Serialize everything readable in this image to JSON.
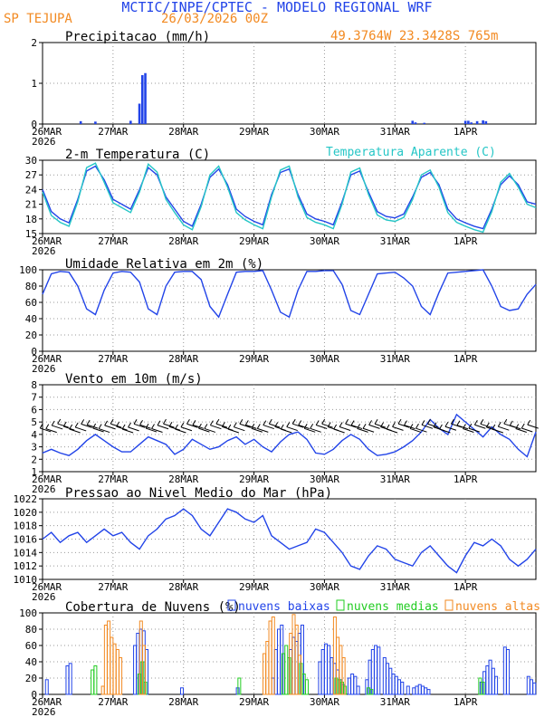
{
  "header": {
    "title": "MCTIC/INPE/CPTEC - MODELO REGIONAL WRF",
    "station": "SP TEJUPA",
    "run": "26/03/2026 00Z",
    "location": "49.3764W 23.3428S 765m"
  },
  "colors": {
    "blue": "#2244e8",
    "cyan": "#25c6c6",
    "orange": "#f28a22",
    "green": "#22cc22",
    "black": "#000000",
    "grid": "#999999"
  },
  "x_axis": {
    "labels": [
      "26MAR",
      "27MAR",
      "28MAR",
      "29MAR",
      "30MAR",
      "31MAR",
      "1APR"
    ],
    "year": "2026",
    "hours_total": 168
  },
  "chart_data": [
    {
      "type": "bar",
      "title": "Precipitacao (mm/h)",
      "ylim": [
        0,
        2
      ],
      "yticks": [
        "0",
        "1",
        "2"
      ],
      "series": [
        {
          "name": "Precipitacao",
          "color": "#2244e8",
          "x": [
            13,
            18,
            30,
            33,
            34,
            35,
            126,
            127,
            130,
            144,
            145,
            146,
            148,
            150,
            151
          ],
          "values": [
            0.07,
            0.06,
            0.08,
            0.5,
            1.2,
            1.25,
            0.08,
            0.04,
            0.03,
            0.08,
            0.08,
            0.04,
            0.07,
            0.09,
            0.07
          ]
        }
      ]
    },
    {
      "type": "line",
      "title": "2-m Temperatura (C)",
      "legend": "Temperatura Aparente (C)",
      "ylim": [
        15,
        30
      ],
      "yticks": [
        "15",
        "18",
        "21",
        "24",
        "27",
        "30"
      ],
      "series": [
        {
          "name": "2-m Temperatura",
          "color": "#2244e8",
          "x": [
            0,
            3,
            6,
            9,
            12,
            15,
            18,
            21,
            24,
            27,
            30,
            33,
            36,
            39,
            42,
            45,
            48,
            51,
            54,
            57,
            60,
            63,
            66,
            69,
            72,
            75,
            78,
            81,
            84,
            87,
            90,
            93,
            96,
            99,
            102,
            105,
            108,
            111,
            114,
            117,
            120,
            123,
            126,
            129,
            132,
            135,
            138,
            141,
            144,
            147,
            150,
            153,
            156,
            159,
            162,
            165,
            168
          ],
          "values": [
            24,
            19.5,
            18,
            17.2,
            22,
            27.8,
            28.8,
            26,
            22,
            21,
            20,
            24,
            28.5,
            27,
            22.5,
            20,
            17.5,
            16.5,
            21,
            26.5,
            28.2,
            25,
            20,
            18.5,
            17.5,
            16.8,
            23,
            27.5,
            28.2,
            23,
            19,
            18,
            17.5,
            16.8,
            21.5,
            27,
            27.8,
            23.5,
            19.5,
            18.5,
            18.2,
            19,
            22.5,
            26.5,
            27.5,
            25,
            20,
            18,
            17.2,
            16.5,
            16,
            20,
            25,
            26.8,
            25,
            21.5,
            21
          ]
        },
        {
          "name": "Temperatura Aparente",
          "color": "#25c6c6",
          "x": [
            0,
            3,
            6,
            9,
            12,
            15,
            18,
            21,
            24,
            27,
            30,
            33,
            36,
            39,
            42,
            45,
            48,
            51,
            54,
            57,
            60,
            63,
            66,
            69,
            72,
            75,
            78,
            81,
            84,
            87,
            90,
            93,
            96,
            99,
            102,
            105,
            108,
            111,
            114,
            117,
            120,
            123,
            126,
            129,
            132,
            135,
            138,
            141,
            144,
            147,
            150,
            153,
            156,
            159,
            162,
            165,
            168
          ],
          "values": [
            23.5,
            18.7,
            17.3,
            16.5,
            21.5,
            28.5,
            29.4,
            25.5,
            21.3,
            20.3,
            19.3,
            23.5,
            29.2,
            27.6,
            22,
            19.3,
            16.8,
            15.8,
            20.5,
            27,
            28.8,
            24.5,
            19.3,
            17.8,
            16.8,
            16,
            22.5,
            28,
            28.8,
            22.5,
            18.3,
            17.3,
            16.8,
            16,
            21,
            27.6,
            28.4,
            23,
            18.8,
            17.8,
            17.5,
            18.3,
            22,
            27,
            28,
            24.5,
            19.3,
            17.3,
            16.5,
            15.8,
            15.3,
            19.5,
            25.5,
            27.3,
            24.5,
            21,
            20.3
          ]
        }
      ]
    },
    {
      "type": "line",
      "title": "Umidade Relativa em 2m (%)",
      "ylim": [
        0,
        100
      ],
      "yticks": [
        "0",
        "20",
        "40",
        "60",
        "80",
        "100"
      ],
      "series": [
        {
          "name": "Umidade Relativa",
          "color": "#2244e8",
          "x": [
            0,
            3,
            6,
            9,
            12,
            15,
            18,
            21,
            24,
            27,
            30,
            33,
            36,
            39,
            42,
            45,
            48,
            51,
            54,
            57,
            60,
            63,
            66,
            69,
            72,
            75,
            78,
            81,
            84,
            87,
            90,
            93,
            96,
            99,
            102,
            105,
            108,
            111,
            114,
            117,
            120,
            123,
            126,
            129,
            132,
            135,
            138,
            141,
            144,
            147,
            150,
            153,
            156,
            159,
            162,
            165,
            168
          ],
          "values": [
            70,
            95,
            98,
            97,
            80,
            52,
            45,
            75,
            96,
            98,
            97,
            85,
            52,
            45,
            80,
            97,
            98,
            98,
            88,
            55,
            42,
            70,
            97,
            98,
            98,
            99,
            75,
            48,
            42,
            75,
            98,
            98,
            99,
            99,
            82,
            50,
            45,
            70,
            95,
            96,
            97,
            90,
            80,
            55,
            45,
            72,
            96,
            97,
            98,
            99,
            100,
            80,
            55,
            50,
            52,
            70,
            82
          ]
        }
      ]
    },
    {
      "type": "line",
      "title": "Vento em 10m (m/s)",
      "ylim": [
        1,
        8
      ],
      "yticks": [
        "1",
        "2",
        "3",
        "4",
        "5",
        "6",
        "7",
        "8"
      ],
      "series": [
        {
          "name": "Vento em 10m",
          "color": "#2244e8",
          "x": [
            0,
            3,
            6,
            9,
            12,
            15,
            18,
            21,
            24,
            27,
            30,
            33,
            36,
            39,
            42,
            45,
            48,
            51,
            54,
            57,
            60,
            63,
            66,
            69,
            72,
            75,
            78,
            81,
            84,
            87,
            90,
            93,
            96,
            99,
            102,
            105,
            108,
            111,
            114,
            117,
            120,
            123,
            126,
            129,
            132,
            135,
            138,
            141,
            144,
            147,
            150,
            153,
            156,
            159,
            162,
            165,
            168
          ],
          "values": [
            2.5,
            2.8,
            2.5,
            2.3,
            2.8,
            3.5,
            4,
            3.5,
            3,
            2.6,
            2.6,
            3.2,
            3.8,
            3.5,
            3.2,
            2.4,
            2.8,
            3.6,
            3.2,
            2.8,
            3,
            3.5,
            3.8,
            3.2,
            3.6,
            3,
            2.6,
            3.4,
            4,
            4.2,
            3.6,
            2.5,
            2.4,
            2.8,
            3.5,
            4,
            3.6,
            2.8,
            2.3,
            2.4,
            2.6,
            3,
            3.5,
            4.2,
            5.2,
            4.5,
            4,
            5.6,
            5,
            4.4,
            3.8,
            4.6,
            4,
            3.6,
            2.8,
            2.2,
            4.2
          ]
        }
      ],
      "barbs": true
    },
    {
      "type": "line",
      "title": "Pressao ao Nivel Medio do Mar (hPa)",
      "ylim": [
        1010,
        1022
      ],
      "yticks": [
        "1010",
        "1012",
        "1014",
        "1016",
        "1018",
        "1020",
        "1022"
      ],
      "series": [
        {
          "name": "Pressao",
          "color": "#2244e8",
          "x": [
            0,
            3,
            6,
            9,
            12,
            15,
            18,
            21,
            24,
            27,
            30,
            33,
            36,
            39,
            42,
            45,
            48,
            51,
            54,
            57,
            60,
            63,
            66,
            69,
            72,
            75,
            78,
            81,
            84,
            87,
            90,
            93,
            96,
            99,
            102,
            105,
            108,
            111,
            114,
            117,
            120,
            123,
            126,
            129,
            132,
            135,
            138,
            141,
            144,
            147,
            150,
            153,
            156,
            159,
            162,
            165,
            168
          ],
          "values": [
            1016,
            1017,
            1015.5,
            1016.5,
            1017,
            1015.5,
            1016.5,
            1017.5,
            1016.5,
            1017,
            1015.5,
            1014.5,
            1016.5,
            1017.5,
            1019,
            1019.5,
            1020.5,
            1019.5,
            1017.5,
            1016.5,
            1018.5,
            1020.5,
            1020,
            1019,
            1018.5,
            1019.5,
            1016.5,
            1015.5,
            1014.5,
            1015,
            1015.5,
            1017.5,
            1017,
            1015.5,
            1014,
            1012,
            1011.5,
            1013.5,
            1015,
            1014.5,
            1013,
            1012.5,
            1012,
            1014,
            1015,
            1013.5,
            1012,
            1011,
            1013.5,
            1015.5,
            1015,
            1016,
            1015,
            1013,
            1012,
            1013,
            1014.5
          ]
        }
      ]
    },
    {
      "type": "bar",
      "title": "Cobertura de Nuvens (%)",
      "ylim": [
        0,
        100
      ],
      "yticks": [
        "0",
        "20",
        "40",
        "60",
        "80",
        "100"
      ],
      "legend": [
        "nuvens baixas",
        "nuvens medias",
        "nuvens altas"
      ],
      "series": [
        {
          "name": "nuvens baixas",
          "color": "#2244e8",
          "x": [
            1,
            8,
            9,
            31,
            32,
            33,
            34,
            35,
            47,
            66,
            78,
            79,
            80,
            81,
            84,
            85,
            86,
            87,
            88,
            94,
            95,
            96,
            97,
            98,
            99,
            100,
            101,
            102,
            104,
            105,
            106,
            107,
            110,
            111,
            112,
            113,
            114,
            116,
            117,
            118,
            119,
            120,
            121,
            122,
            124,
            126,
            127,
            128,
            129,
            130,
            131,
            149,
            150,
            151,
            152,
            153,
            154,
            157,
            158,
            165,
            166,
            167
          ],
          "values": [
            18,
            35,
            38,
            60,
            75,
            80,
            78,
            55,
            8,
            8,
            20,
            55,
            80,
            85,
            55,
            70,
            65,
            75,
            85,
            40,
            55,
            62,
            60,
            45,
            38,
            30,
            18,
            12,
            20,
            25,
            22,
            10,
            18,
            42,
            55,
            60,
            58,
            45,
            38,
            32,
            25,
            22,
            18,
            15,
            10,
            8,
            10,
            12,
            10,
            8,
            6,
            15,
            28,
            35,
            42,
            32,
            22,
            58,
            55,
            22,
            18,
            14
          ]
        },
        {
          "name": "nuvens medias",
          "color": "#22cc22",
          "x": [
            17,
            18,
            33,
            34,
            35,
            67,
            82,
            83,
            84,
            88,
            89,
            90,
            100,
            101,
            102,
            103,
            111,
            112,
            149,
            150
          ],
          "values": [
            30,
            35,
            25,
            40,
            15,
            20,
            50,
            60,
            45,
            38,
            25,
            18,
            20,
            18,
            15,
            10,
            8,
            6,
            20,
            15
          ]
        },
        {
          "name": "nuvens altas",
          "color": "#f28a22",
          "x": [
            21,
            22,
            23,
            24,
            25,
            26,
            27,
            34,
            35,
            76,
            77,
            78,
            79,
            85,
            86,
            87,
            88,
            100,
            101,
            102,
            103
          ],
          "values": [
            10,
            85,
            90,
            70,
            62,
            55,
            45,
            90,
            60,
            50,
            65,
            90,
            95,
            75,
            98,
            85,
            48,
            95,
            70,
            60,
            45
          ]
        }
      ]
    }
  ]
}
